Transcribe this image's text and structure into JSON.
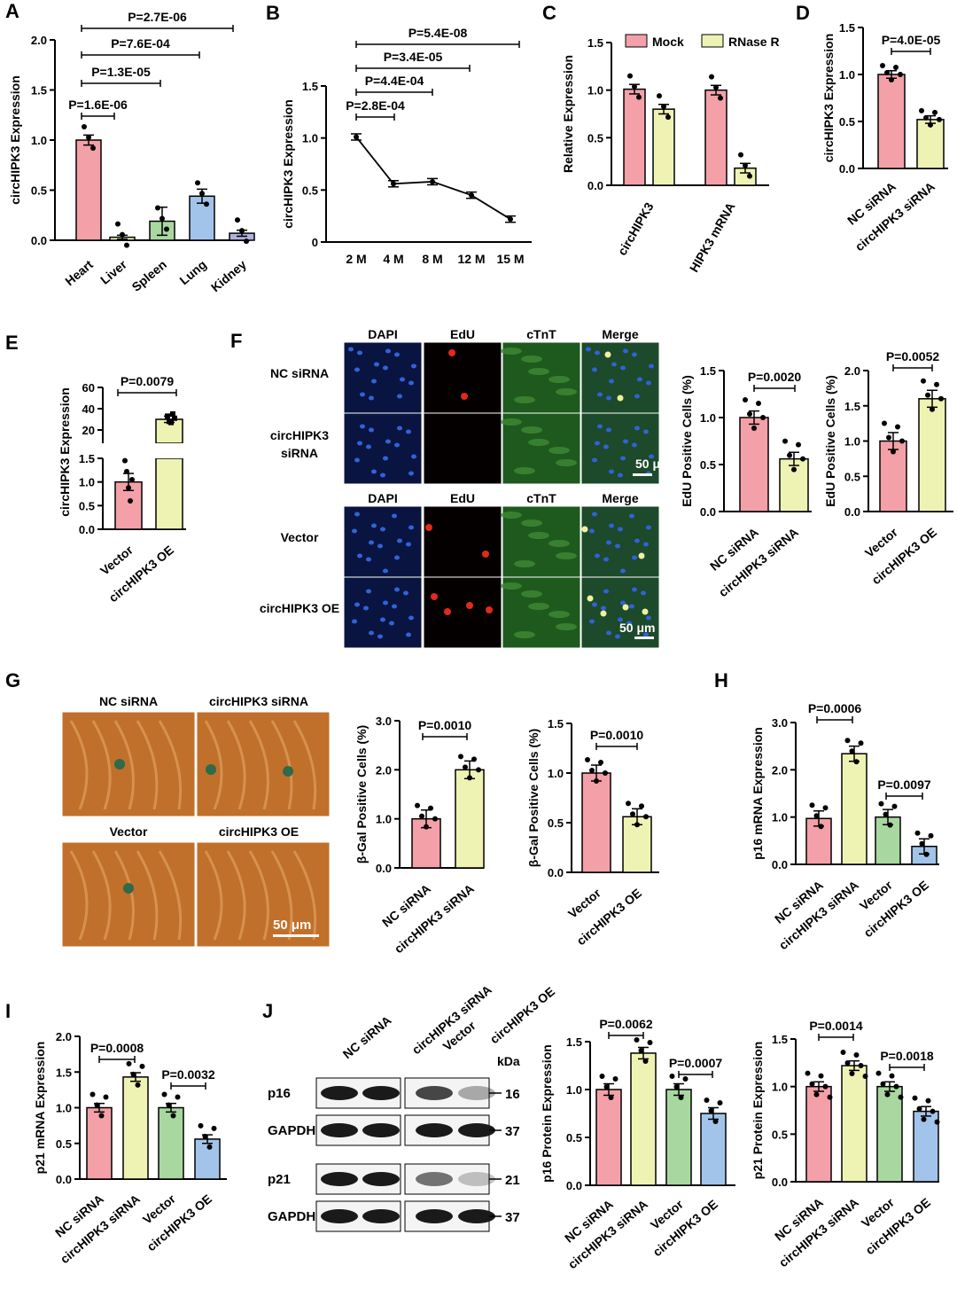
{
  "colors": {
    "pink": "#f4a0a8",
    "yellow": "#eef3b3",
    "green": "#a8d8a0",
    "blue": "#a3c4ea",
    "purple": "#b0b0e0"
  },
  "panel_labels": {
    "A": "A",
    "B": "B",
    "C": "C",
    "D": "D",
    "E": "E",
    "F": "F",
    "G": "G",
    "H": "H",
    "I": "I",
    "J": "J"
  },
  "panelF": {
    "col_headers": [
      "DAPI",
      "EdU",
      "cTnT",
      "Merge"
    ],
    "row_labels": [
      "NC siRNA",
      "circHIPK3\nsiRNA",
      "Vector",
      "circHIPK3 OE"
    ],
    "scale": "50 μm"
  },
  "panelG": {
    "labels": [
      "NC siRNA",
      "circHIPK3 siRNA",
      "Vector",
      "circHIPK3 OE"
    ],
    "scale": "50  μm"
  },
  "panelJ": {
    "lane_labels": [
      "NC siRNA",
      "circHIPK3 siRNA",
      "Vector",
      "circHIPK3 OE"
    ],
    "row_labels": [
      "p16",
      "GAPDH",
      "p21",
      "GAPDH"
    ],
    "kda_title": "kDa",
    "kda": [
      "16",
      "37",
      "21",
      "37"
    ]
  },
  "chart_data": [
    {
      "id": "A",
      "type": "bar",
      "categories": [
        "Heart",
        "Liver",
        "Spleen",
        "Lung",
        "Kidney"
      ],
      "values": [
        1.0,
        0.03,
        0.19,
        0.44,
        0.07
      ],
      "errors": [
        0.05,
        0.02,
        0.14,
        0.07,
        0.03
      ],
      "ylabel": "circHIPK3 Expression",
      "ylim": [
        0,
        2.0
      ],
      "yticks": [
        "0.0",
        "0.5",
        "1.0",
        "1.5",
        "2.0"
      ],
      "pvalues": [
        "P=1.6E-06",
        "P=1.3E-05",
        "P=7.6E-04",
        "P=2.7E-06"
      ]
    },
    {
      "id": "B",
      "type": "line",
      "categories": [
        "2 M",
        "4 M",
        "8 M",
        "12 M",
        "15 M"
      ],
      "values": [
        1.01,
        0.56,
        0.58,
        0.45,
        0.22
      ],
      "ylabel": "circHIPK3 Expression",
      "ylim": [
        0,
        1.5
      ],
      "yticks": [
        "0",
        "0.5",
        "1.0",
        "1.5"
      ],
      "pvalues": [
        "P=2.8E-04",
        "P=4.4E-04",
        "P=3.4E-05",
        "P=5.4E-08"
      ]
    },
    {
      "id": "C",
      "type": "bar",
      "categories": [
        "circHIPK3",
        "HIPK3 mRNA"
      ],
      "series": [
        {
          "name": "Mock",
          "values": [
            1.01,
            1.0
          ]
        },
        {
          "name": "RNase R",
          "values": [
            0.8,
            0.18
          ]
        }
      ],
      "ylabel": "Relative Expression",
      "ylim": [
        0,
        1.5
      ],
      "yticks": [
        "0.0",
        "0.5",
        "1.0",
        "1.5"
      ]
    },
    {
      "id": "D",
      "type": "bar",
      "categories": [
        "NC siRNA",
        "circHIPK3 siRNA"
      ],
      "values": [
        1.0,
        0.52
      ],
      "ylabel": "circHIPK3 Expression",
      "ylim": [
        0,
        1.5
      ],
      "yticks": [
        "0.0",
        "0.5",
        "1.0",
        "1.5"
      ],
      "pvalues": [
        "P=4.0E-05"
      ]
    },
    {
      "id": "E",
      "type": "bar",
      "categories": [
        "Vector",
        "circHIPK3 OE"
      ],
      "values": [
        1.0,
        30
      ],
      "ylabel": "circHIPK3 Expression",
      "yticks_low": [
        "0.0",
        "0.5",
        "1.0",
        "1.5"
      ],
      "yticks_high": [
        "20",
        "40",
        "60"
      ],
      "pvalues": [
        "P=0.0079"
      ]
    },
    {
      "id": "F1",
      "type": "bar",
      "categories": [
        "NC siRNA",
        "circHIPK3 siRNA"
      ],
      "values": [
        1.0,
        0.56
      ],
      "ylabel": "EdU Positive Cells (%)",
      "ylim": [
        0,
        1.5
      ],
      "yticks": [
        "0.0",
        "0.5",
        "1.0",
        "1.5"
      ],
      "pvalues": [
        "P=0.0020"
      ]
    },
    {
      "id": "F2",
      "type": "bar",
      "categories": [
        "Vector",
        "circHIPK3 OE"
      ],
      "values": [
        1.0,
        1.6
      ],
      "ylabel": "EdU Positive Cells (%)",
      "ylim": [
        0,
        2.0
      ],
      "yticks": [
        "0.0",
        "0.5",
        "1.0",
        "1.5",
        "2.0"
      ],
      "pvalues": [
        "P=0.0052"
      ]
    },
    {
      "id": "G1",
      "type": "bar",
      "categories": [
        "NC siRNA",
        "circHIPK3 siRNA"
      ],
      "values": [
        1.0,
        2.0
      ],
      "ylabel": "β-Gal Positive Cells (%)",
      "ylim": [
        0,
        3.0
      ],
      "yticks": [
        "0.0",
        "1.0",
        "2.0",
        "3.0"
      ],
      "pvalues": [
        "P=0.0010"
      ]
    },
    {
      "id": "G2",
      "type": "bar",
      "categories": [
        "Vector",
        "circHIPK3 OE"
      ],
      "values": [
        1.0,
        0.56
      ],
      "ylabel": "β-Gal Positive Cells (%)",
      "ylim": [
        0,
        1.5
      ],
      "yticks": [
        "0.0",
        "0.5",
        "1.0",
        "1.5"
      ],
      "pvalues": [
        "P=0.0010"
      ]
    },
    {
      "id": "H",
      "type": "bar",
      "categories": [
        "NC siRNA",
        "circHIPK3 siRNA",
        "Vector",
        "circHIPK3 OE"
      ],
      "values": [
        0.97,
        2.34,
        1.0,
        0.38
      ],
      "ylabel": "p16 mRNA Expression",
      "ylim": [
        0,
        3.0
      ],
      "yticks": [
        "0.0",
        "1.0",
        "2.0",
        "3.0"
      ],
      "pvalues": [
        "P=0.0006",
        "P=0.0097"
      ]
    },
    {
      "id": "I",
      "type": "bar",
      "categories": [
        "NC siRNA",
        "circHIPK3 siRNA",
        "Vector",
        "circHIPK3 OE"
      ],
      "values": [
        1.0,
        1.43,
        1.0,
        0.56
      ],
      "ylabel": "p21 mRNA Expression",
      "ylim": [
        0,
        2.0
      ],
      "yticks": [
        "0.0",
        "0.5",
        "1.0",
        "1.5",
        "2.0"
      ],
      "pvalues": [
        "P=0.0008",
        "P=0.0032"
      ]
    },
    {
      "id": "J1",
      "type": "bar",
      "categories": [
        "NC siRNA",
        "circHIPK3 siRNA",
        "Vector",
        "circHIPK3 OE"
      ],
      "values": [
        1.0,
        1.38,
        1.0,
        0.75
      ],
      "ylabel": "p16 Protein Expression",
      "ylim": [
        0,
        1.5
      ],
      "yticks": [
        "0.0",
        "0.5",
        "1.0",
        "1.5"
      ],
      "pvalues": [
        "P=0.0062",
        "P=0.0007"
      ]
    },
    {
      "id": "J2",
      "type": "bar",
      "categories": [
        "NC siRNA",
        "circHIPK3 siRNA",
        "Vector",
        "circHIPK3 OE"
      ],
      "values": [
        1.0,
        1.22,
        1.0,
        0.74
      ],
      "ylabel": "p21 Protein Expression",
      "ylim": [
        0,
        1.5
      ],
      "yticks": [
        "0.0",
        "0.5",
        "1.0",
        "1.5"
      ],
      "pvalues": [
        "P=0.0014",
        "P=0.0018"
      ]
    }
  ]
}
